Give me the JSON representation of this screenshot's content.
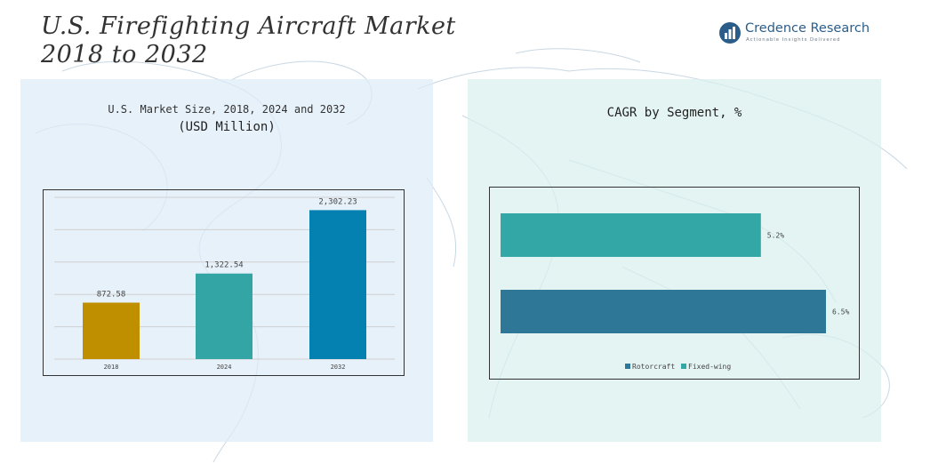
{
  "header": {
    "title_line1": "U.S. Firefighting Aircraft Market",
    "title_line2": "2018 to 2032"
  },
  "logo": {
    "name": "Credence Research",
    "tagline": "Actionable Insights Delivered"
  },
  "left_panel": {
    "title": "U.S. Market Size, 2018, 2024 and 2032",
    "subtitle": "(USD Million)"
  },
  "right_panel": {
    "title": "CAGR by Segment, %"
  },
  "colors": {
    "bar_2018": "#c08f00",
    "bar_2024": "#33a5a5",
    "bar_2032": "#0481b0",
    "rotorcraft": "#2e7796",
    "fixed_wing": "#33a6a6",
    "brand": "#2a5d8a"
  },
  "chart_data": [
    {
      "type": "bar",
      "title": "U.S. Market Size, 2018, 2024 and 2032",
      "ylabel": "USD Million",
      "categories": [
        "2018",
        "2024",
        "2032"
      ],
      "values": [
        872.58,
        1322.54,
        2302.23
      ],
      "value_labels": [
        "872.58",
        "1,322.54",
        "2,302.23"
      ],
      "ylim": [
        0,
        2500
      ],
      "grid": true
    },
    {
      "type": "bar",
      "orientation": "horizontal",
      "title": "CAGR by Segment, %",
      "series": [
        {
          "name": "Fixed-wing",
          "value": 5.2,
          "label": "5.2%"
        },
        {
          "name": "Rotorcraft",
          "value": 6.5,
          "label": "6.5%"
        }
      ],
      "legend": [
        "Rotorcraft",
        "Fixed-wing"
      ],
      "legend_position": "bottom",
      "xlim": [
        0,
        6.5
      ]
    }
  ]
}
